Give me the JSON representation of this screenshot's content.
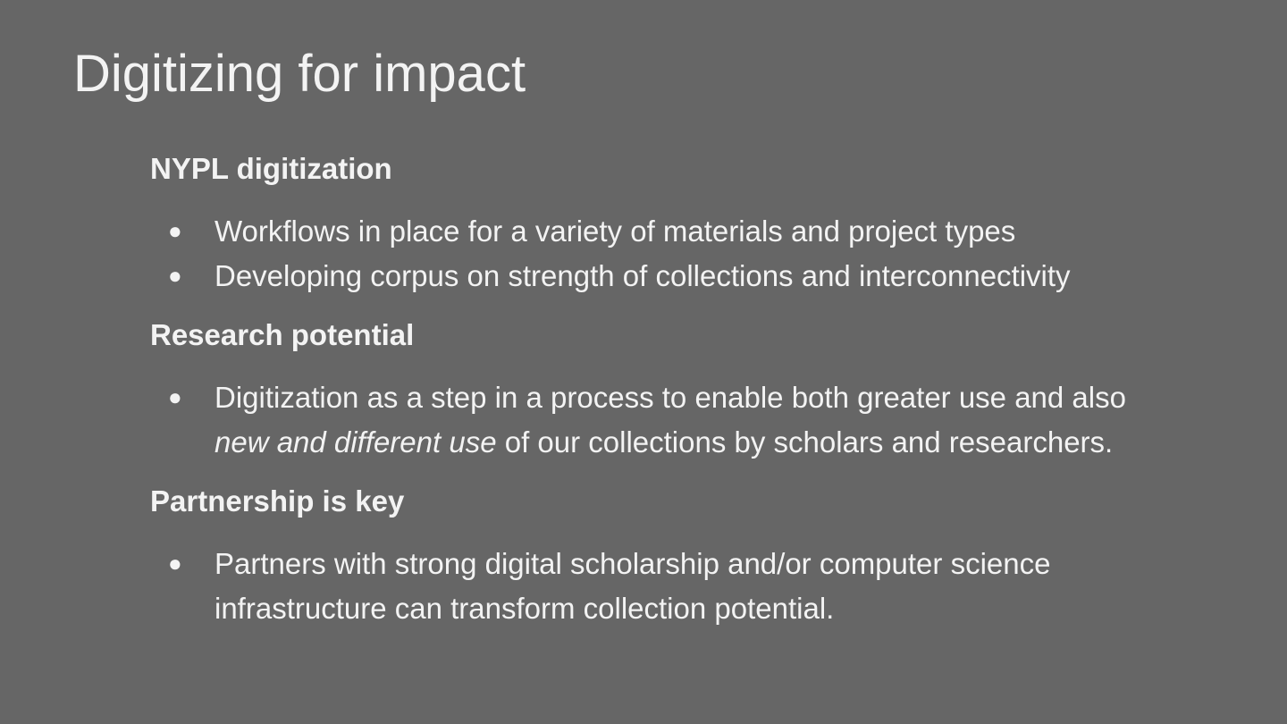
{
  "slide": {
    "title": "Digitizing for impact",
    "sections": [
      {
        "heading": "NYPL digitization",
        "bullets": [
          {
            "text": "Workflows in place for a variety of materials and project types"
          },
          {
            "text": "Developing corpus on strength of collections and interconnectivity"
          }
        ]
      },
      {
        "heading": "Research potential",
        "bullets": [
          {
            "before": "Digitization as a step in a process to enable both greater use and also ",
            "emphasis": "new and different use",
            "after": " of our collections by scholars and researchers."
          }
        ]
      },
      {
        "heading": "Partnership is key",
        "bullets": [
          {
            "text": "Partners with strong digital scholarship and/or computer science infrastructure can transform collection potential."
          }
        ]
      }
    ],
    "bullet_glyph": "●",
    "colors": {
      "background": "#666666",
      "text": "#f3f3f3"
    }
  }
}
